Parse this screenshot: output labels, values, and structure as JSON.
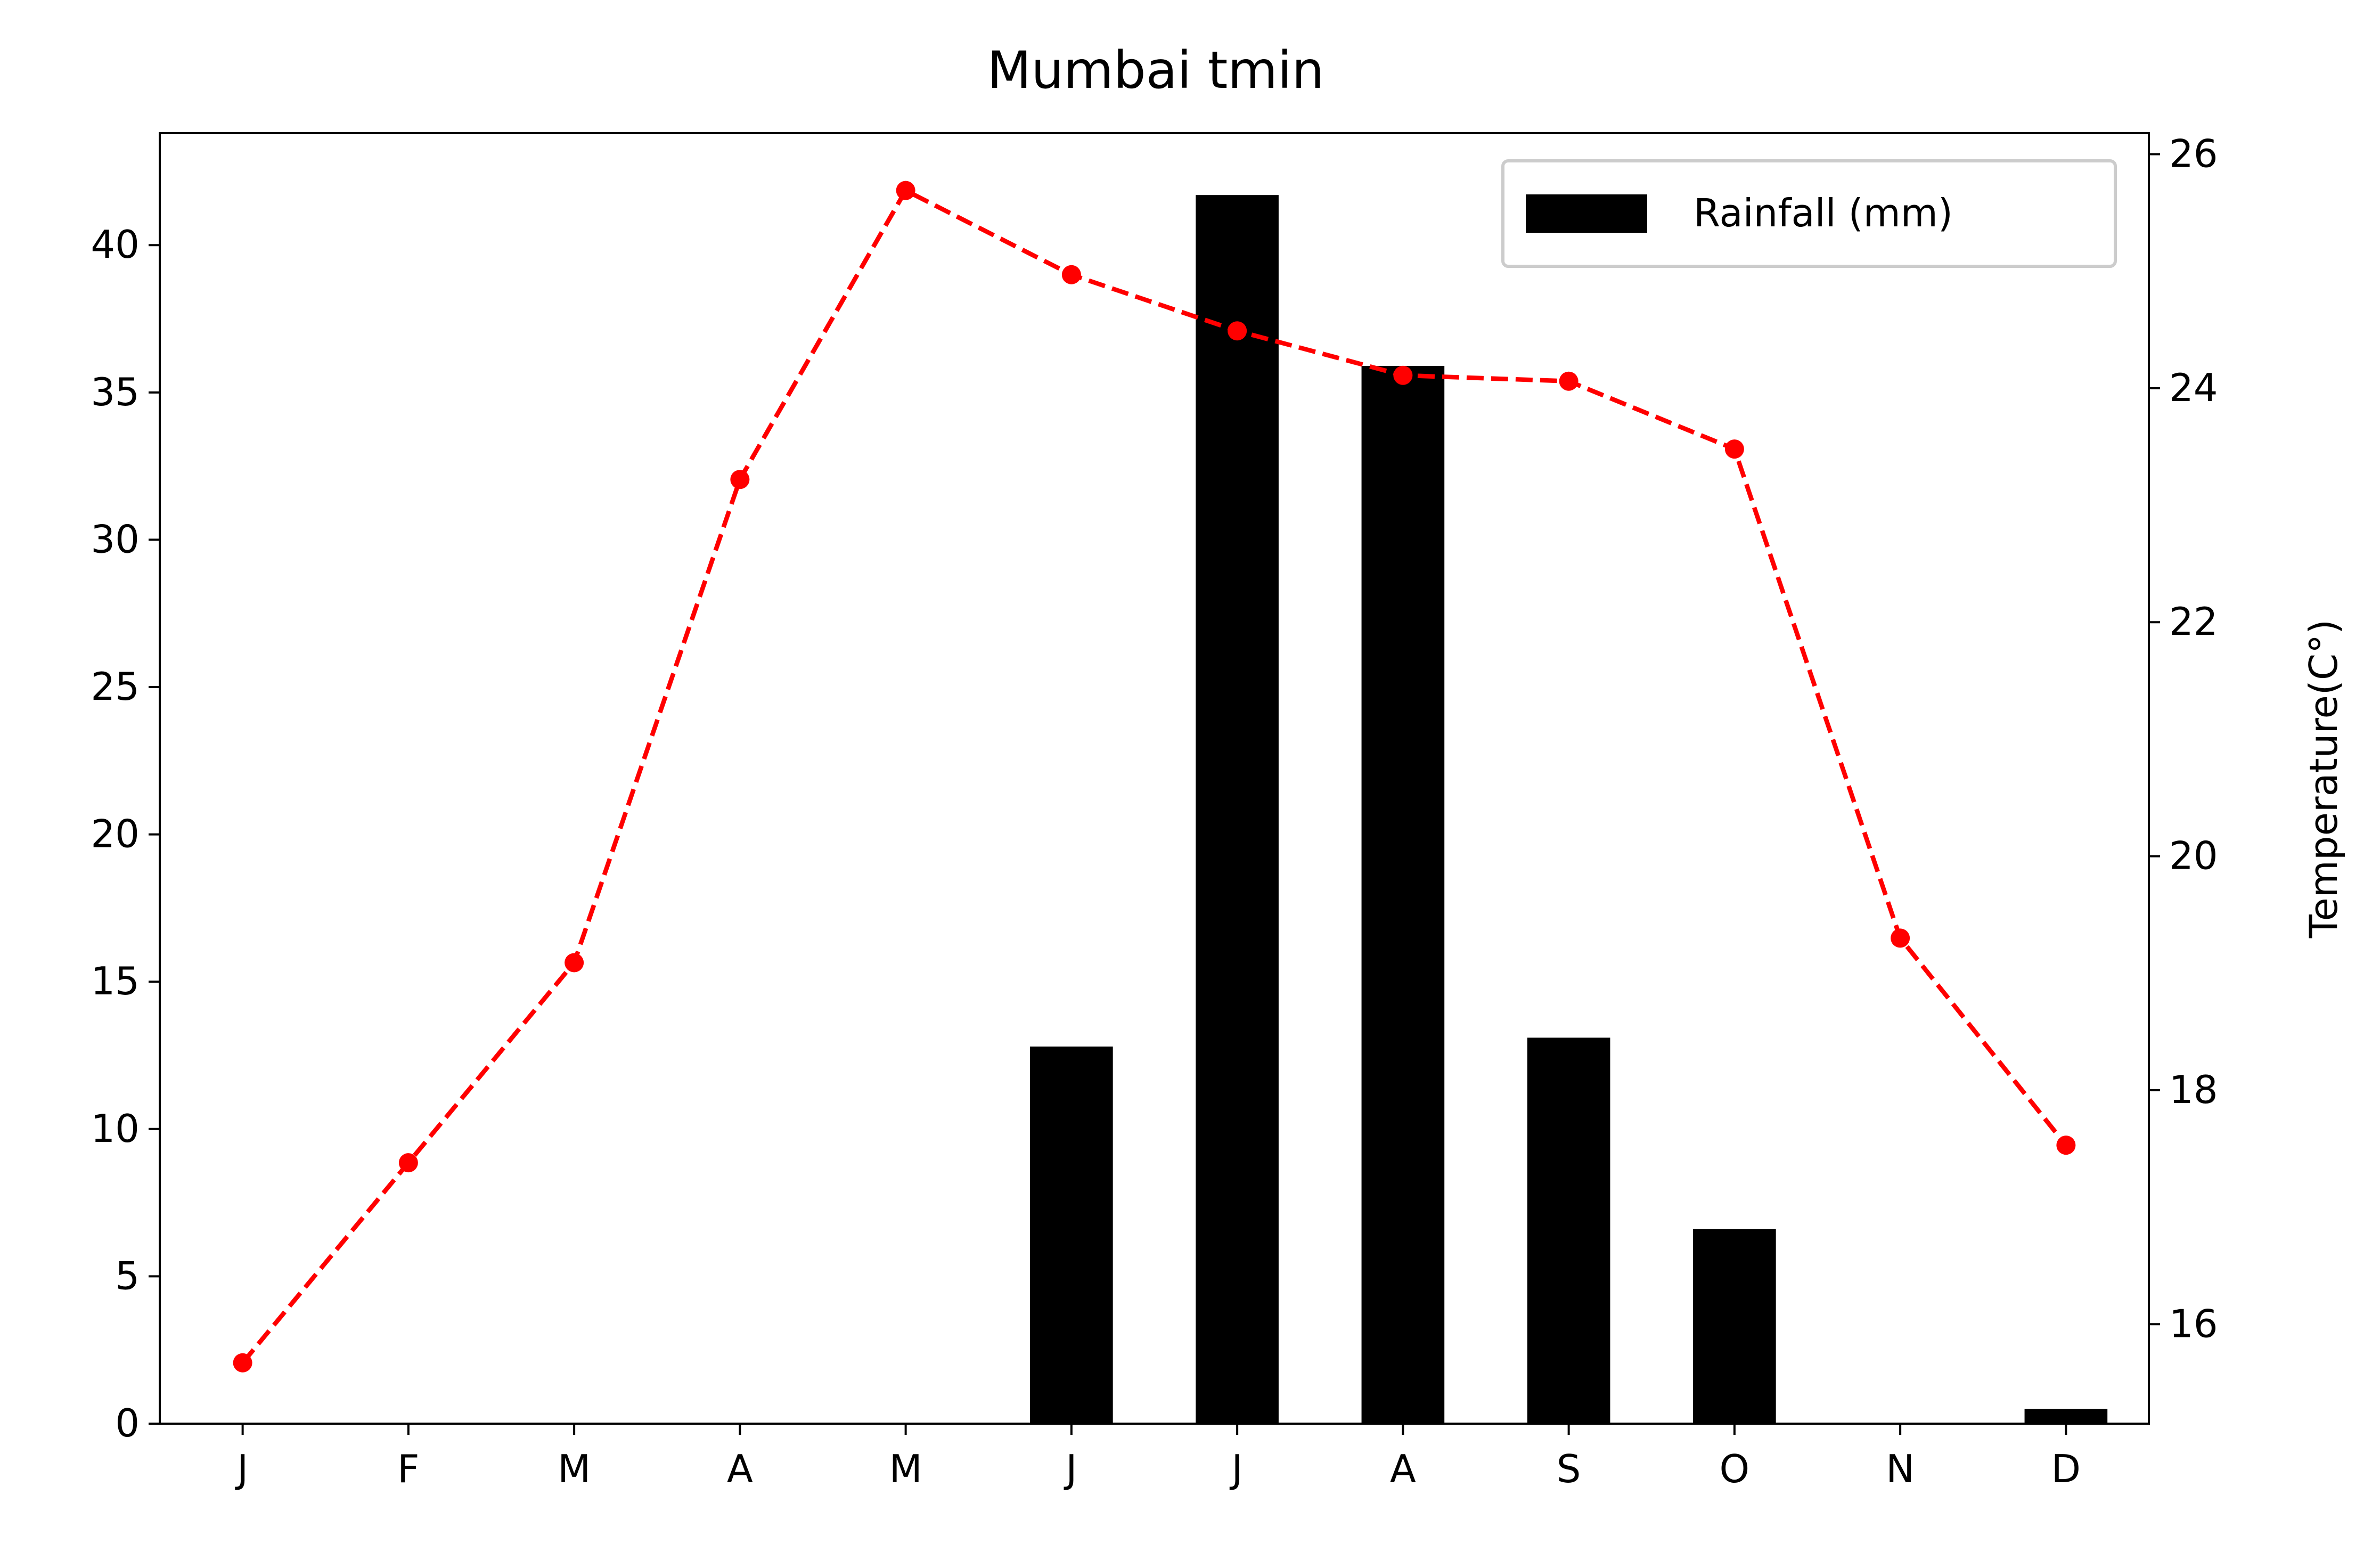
{
  "chart_data": {
    "type": "bar",
    "title": "Mumbai tmin",
    "categories": [
      "J",
      "F",
      "M",
      "A",
      "M",
      "J",
      "J",
      "A",
      "S",
      "O",
      "N",
      "D"
    ],
    "series": [
      {
        "name": "Rainfall (mm)",
        "type": "bar",
        "axis": "left",
        "color": "#000000",
        "values": [
          0,
          0,
          0,
          0,
          0,
          12.8,
          41.7,
          35.9,
          13.1,
          6.6,
          0,
          0.5
        ]
      },
      {
        "type": "line",
        "axis": "right",
        "color": "#ff0000",
        "line_style": "dashed",
        "marker": "circle",
        "values": [
          15.67,
          17.38,
          19.09,
          23.22,
          25.69,
          24.97,
          24.49,
          24.11,
          24.06,
          23.48,
          19.3,
          17.53
        ]
      }
    ],
    "y_left": {
      "label": "",
      "ylim": [
        0,
        43.8
      ],
      "ticks": [
        0,
        5,
        10,
        15,
        20,
        25,
        30,
        35,
        40
      ]
    },
    "y_right": {
      "label": "Temperature(C°)",
      "ylim": [
        15.15,
        26.18
      ],
      "ticks": [
        16,
        18,
        20,
        22,
        24,
        26
      ]
    },
    "xlabel": "",
    "grid": false,
    "legend": {
      "position": "top-right",
      "entries": [
        "Rainfall (mm)"
      ]
    }
  }
}
